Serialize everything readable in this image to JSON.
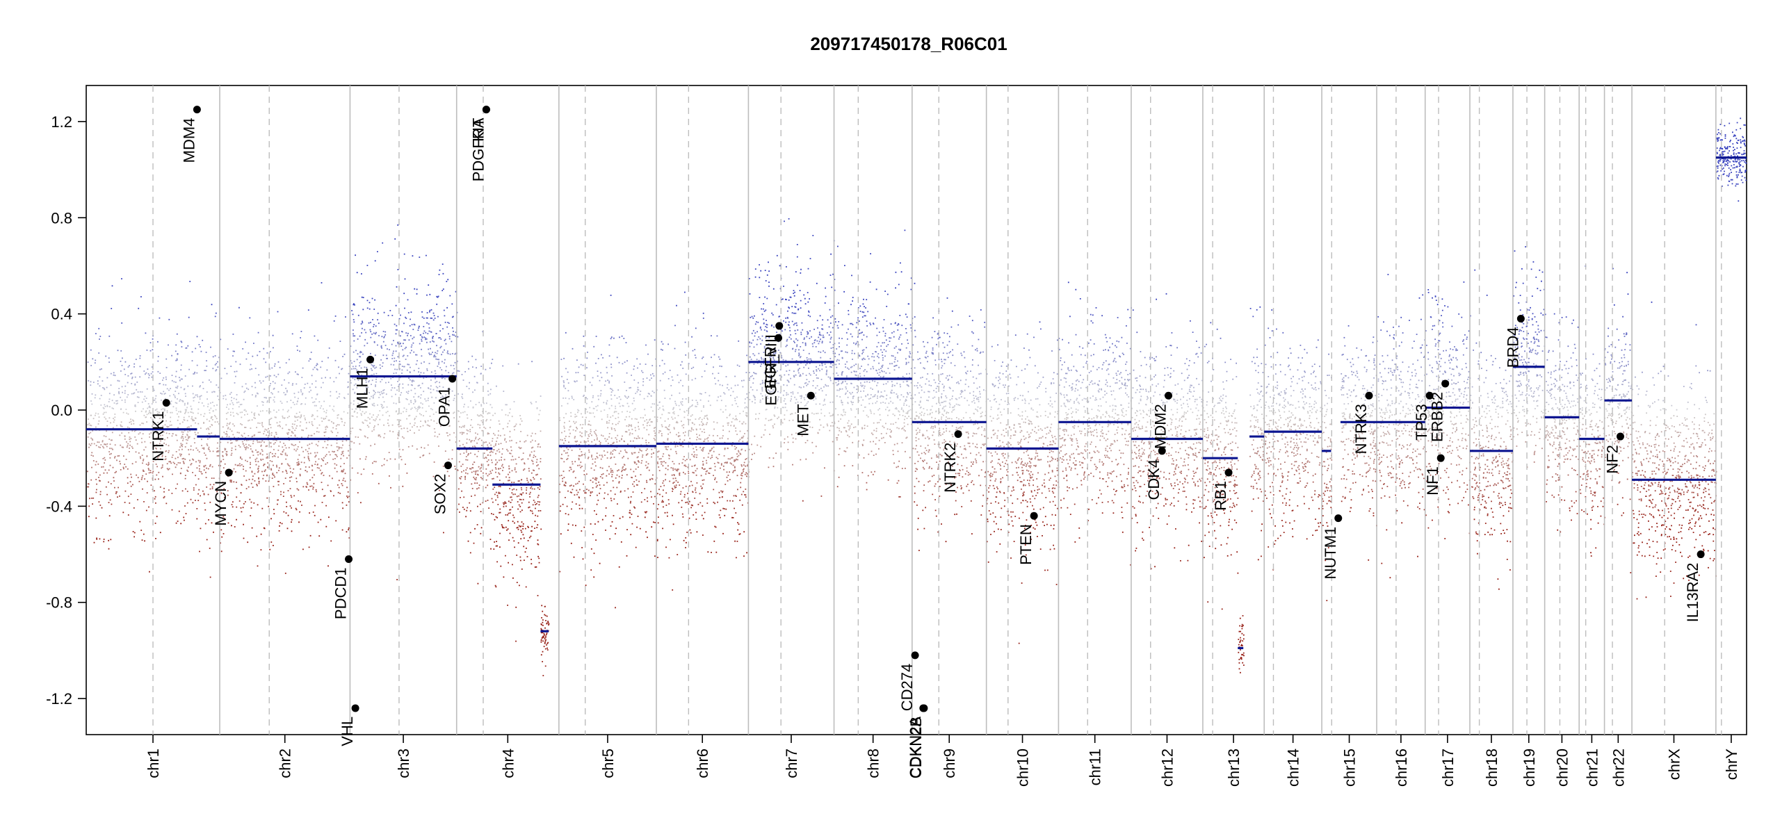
{
  "chart_data": {
    "type": "scatter",
    "title": "209717450178_R06C01",
    "xlabel": "",
    "ylabel": "",
    "ylim": [
      -1.35,
      1.35
    ],
    "y_ticks": [
      -1.2,
      -0.8,
      -0.4,
      0.0,
      0.4,
      0.8,
      1.2
    ],
    "y_tick_labels": [
      "-1.2",
      "-0.8",
      "-0.4",
      "0.0",
      "0.4",
      "0.8",
      "1.2"
    ],
    "chromosomes": [
      {
        "name": "chr1",
        "length": 248,
        "centromere": 0.5
      },
      {
        "name": "chr2",
        "length": 242,
        "centromere": 0.38
      },
      {
        "name": "chr3",
        "length": 198,
        "centromere": 0.46
      },
      {
        "name": "chr4",
        "length": 190,
        "centromere": 0.26
      },
      {
        "name": "chr5",
        "length": 181,
        "centromere": 0.27
      },
      {
        "name": "chr6",
        "length": 171,
        "centromere": 0.35
      },
      {
        "name": "chr7",
        "length": 159,
        "centromere": 0.38
      },
      {
        "name": "chr8",
        "length": 145,
        "centromere": 0.31
      },
      {
        "name": "chr9",
        "length": 138,
        "centromere": 0.36
      },
      {
        "name": "chr10",
        "length": 134,
        "centromere": 0.3
      },
      {
        "name": "chr11",
        "length": 135,
        "centromere": 0.4
      },
      {
        "name": "chr12",
        "length": 133,
        "centromere": 0.27
      },
      {
        "name": "chr13",
        "length": 114,
        "centromere": 0.16
      },
      {
        "name": "chr14",
        "length": 107,
        "centromere": 0.16
      },
      {
        "name": "chr15",
        "length": 102,
        "centromere": 0.18
      },
      {
        "name": "chr16",
        "length": 90,
        "centromere": 0.4
      },
      {
        "name": "chr17",
        "length": 83,
        "centromere": 0.3
      },
      {
        "name": "chr18",
        "length": 80,
        "centromere": 0.22
      },
      {
        "name": "chr19",
        "length": 59,
        "centromere": 0.44
      },
      {
        "name": "chr20",
        "length": 64,
        "centromere": 0.44
      },
      {
        "name": "chr21",
        "length": 47,
        "centromere": 0.26
      },
      {
        "name": "chr22",
        "length": 51,
        "centromere": 0.29
      },
      {
        "name": "chrX",
        "length": 156,
        "centromere": 0.39
      },
      {
        "name": "chrY",
        "length": 57,
        "centromere": 0.18
      }
    ],
    "segments": [
      {
        "chr": "chr1",
        "start": 0.0,
        "end": 0.83,
        "value": -0.08
      },
      {
        "chr": "chr1",
        "start": 0.83,
        "end": 1.0,
        "value": -0.11
      },
      {
        "chr": "chr2",
        "start": 0.0,
        "end": 1.0,
        "value": -0.12
      },
      {
        "chr": "chr3",
        "start": 0.0,
        "end": 1.0,
        "value": 0.14
      },
      {
        "chr": "chr4",
        "start": 0.0,
        "end": 0.35,
        "value": -0.16
      },
      {
        "chr": "chr4",
        "start": 0.35,
        "end": 0.82,
        "value": -0.31
      },
      {
        "chr": "chr4",
        "start": 0.82,
        "end": 0.9,
        "value": -0.92
      },
      {
        "chr": "chr5",
        "start": 0.0,
        "end": 1.0,
        "value": -0.15
      },
      {
        "chr": "chr6",
        "start": 0.0,
        "end": 1.0,
        "value": -0.14
      },
      {
        "chr": "chr7",
        "start": 0.0,
        "end": 1.0,
        "value": 0.2
      },
      {
        "chr": "chr8",
        "start": 0.0,
        "end": 1.0,
        "value": 0.13
      },
      {
        "chr": "chr9",
        "start": 0.0,
        "end": 1.0,
        "value": -0.05
      },
      {
        "chr": "chr10",
        "start": 0.0,
        "end": 1.0,
        "value": -0.16
      },
      {
        "chr": "chr11",
        "start": 0.0,
        "end": 1.0,
        "value": -0.05
      },
      {
        "chr": "chr12",
        "start": 0.0,
        "end": 1.0,
        "value": -0.12
      },
      {
        "chr": "chr13",
        "start": 0.0,
        "end": 0.57,
        "value": -0.2
      },
      {
        "chr": "chr13",
        "start": 0.57,
        "end": 0.66,
        "value": -0.99
      },
      {
        "chr": "chr13",
        "start": 0.76,
        "end": 1.0,
        "value": -0.11
      },
      {
        "chr": "chr14",
        "start": 0.0,
        "end": 1.0,
        "value": -0.09
      },
      {
        "chr": "chr15",
        "start": 0.0,
        "end": 0.17,
        "value": -0.17
      },
      {
        "chr": "chr15",
        "start": 0.34,
        "end": 1.0,
        "value": -0.05
      },
      {
        "chr": "chr16",
        "start": 0.0,
        "end": 1.0,
        "value": -0.05
      },
      {
        "chr": "chr17",
        "start": 0.0,
        "end": 1.0,
        "value": 0.01
      },
      {
        "chr": "chr18",
        "start": 0.0,
        "end": 1.0,
        "value": -0.17
      },
      {
        "chr": "chr19",
        "start": 0.0,
        "end": 1.0,
        "value": 0.18
      },
      {
        "chr": "chr20",
        "start": 0.0,
        "end": 1.0,
        "value": -0.03
      },
      {
        "chr": "chr21",
        "start": 0.0,
        "end": 1.0,
        "value": -0.12
      },
      {
        "chr": "chr22",
        "start": 0.0,
        "end": 1.0,
        "value": 0.04
      },
      {
        "chr": "chrX",
        "start": 0.0,
        "end": 1.0,
        "value": -0.29
      },
      {
        "chr": "chrY",
        "start": 0.0,
        "end": 1.0,
        "value": 1.05
      }
    ],
    "genes": [
      {
        "name": "NTRK1",
        "chr": "chr1",
        "pos": 0.6,
        "value": 0.03
      },
      {
        "name": "MDM4",
        "chr": "chr1",
        "pos": 0.83,
        "value": 1.25
      },
      {
        "name": "MYCN",
        "chr": "chr2",
        "pos": 0.07,
        "value": -0.26
      },
      {
        "name": "PDCD1",
        "chr": "chr2",
        "pos": 0.99,
        "value": -0.62
      },
      {
        "name": "VHL",
        "chr": "chr3",
        "pos": 0.05,
        "value": -1.24
      },
      {
        "name": "MLH1",
        "chr": "chr3",
        "pos": 0.19,
        "value": 0.21
      },
      {
        "name": "SOX2",
        "chr": "chr3",
        "pos": 0.92,
        "value": -0.23
      },
      {
        "name": "OPA1",
        "chr": "chr3",
        "pos": 0.96,
        "value": 0.13
      },
      {
        "name": "PDGFRA",
        "chr": "chr4",
        "pos": 0.29,
        "value": 1.25
      },
      {
        "name": "KIT",
        "chr": "chr4",
        "pos": 0.29,
        "value": 1.25
      },
      {
        "name": "EGFR",
        "chr": "chr7",
        "pos": 0.35,
        "value": 0.3
      },
      {
        "name": "EGFR_vIII",
        "chr": "chr7",
        "pos": 0.36,
        "value": 0.35
      },
      {
        "name": "MET",
        "chr": "chr7",
        "pos": 0.73,
        "value": 0.06
      },
      {
        "name": "CDKN2A",
        "chr": "chr9",
        "pos": 0.15,
        "value": -1.24
      },
      {
        "name": "CDKN2B",
        "chr": "chr9",
        "pos": 0.16,
        "value": -1.24
      },
      {
        "name": "CD274",
        "chr": "chr9",
        "pos": 0.04,
        "value": -1.02
      },
      {
        "name": "NTRK2",
        "chr": "chr9",
        "pos": 0.62,
        "value": -0.1
      },
      {
        "name": "PTEN",
        "chr": "chr10",
        "pos": 0.66,
        "value": -0.44
      },
      {
        "name": "CDK4",
        "chr": "chr12",
        "pos": 0.43,
        "value": -0.17
      },
      {
        "name": "MDM2",
        "chr": "chr12",
        "pos": 0.52,
        "value": 0.06
      },
      {
        "name": "RB1",
        "chr": "chr13",
        "pos": 0.42,
        "value": -0.26
      },
      {
        "name": "NUTM1",
        "chr": "chr15",
        "pos": 0.3,
        "value": -0.45
      },
      {
        "name": "NTRK3",
        "chr": "chr15",
        "pos": 0.86,
        "value": 0.06
      },
      {
        "name": "TP53",
        "chr": "chr17",
        "pos": 0.1,
        "value": 0.06
      },
      {
        "name": "NF1",
        "chr": "chr17",
        "pos": 0.35,
        "value": -0.2
      },
      {
        "name": "ERBB2",
        "chr": "chr17",
        "pos": 0.45,
        "value": 0.11
      },
      {
        "name": "BRD4",
        "chr": "chr19",
        "pos": 0.25,
        "value": 0.38
      },
      {
        "name": "NF2",
        "chr": "chr22",
        "pos": 0.58,
        "value": -0.11
      },
      {
        "name": "IL13RA2",
        "chr": "chrX",
        "pos": 0.82,
        "value": -0.6
      }
    ],
    "colors": {
      "segment": "#0b1590",
      "gain": "#3a44a8",
      "loss": "#9e1b0e",
      "neutral": "#c8c8c8",
      "chr_separator": "#bdbdbd",
      "centromere": "#bdbdbd",
      "gene_dot": "#000000"
    }
  }
}
